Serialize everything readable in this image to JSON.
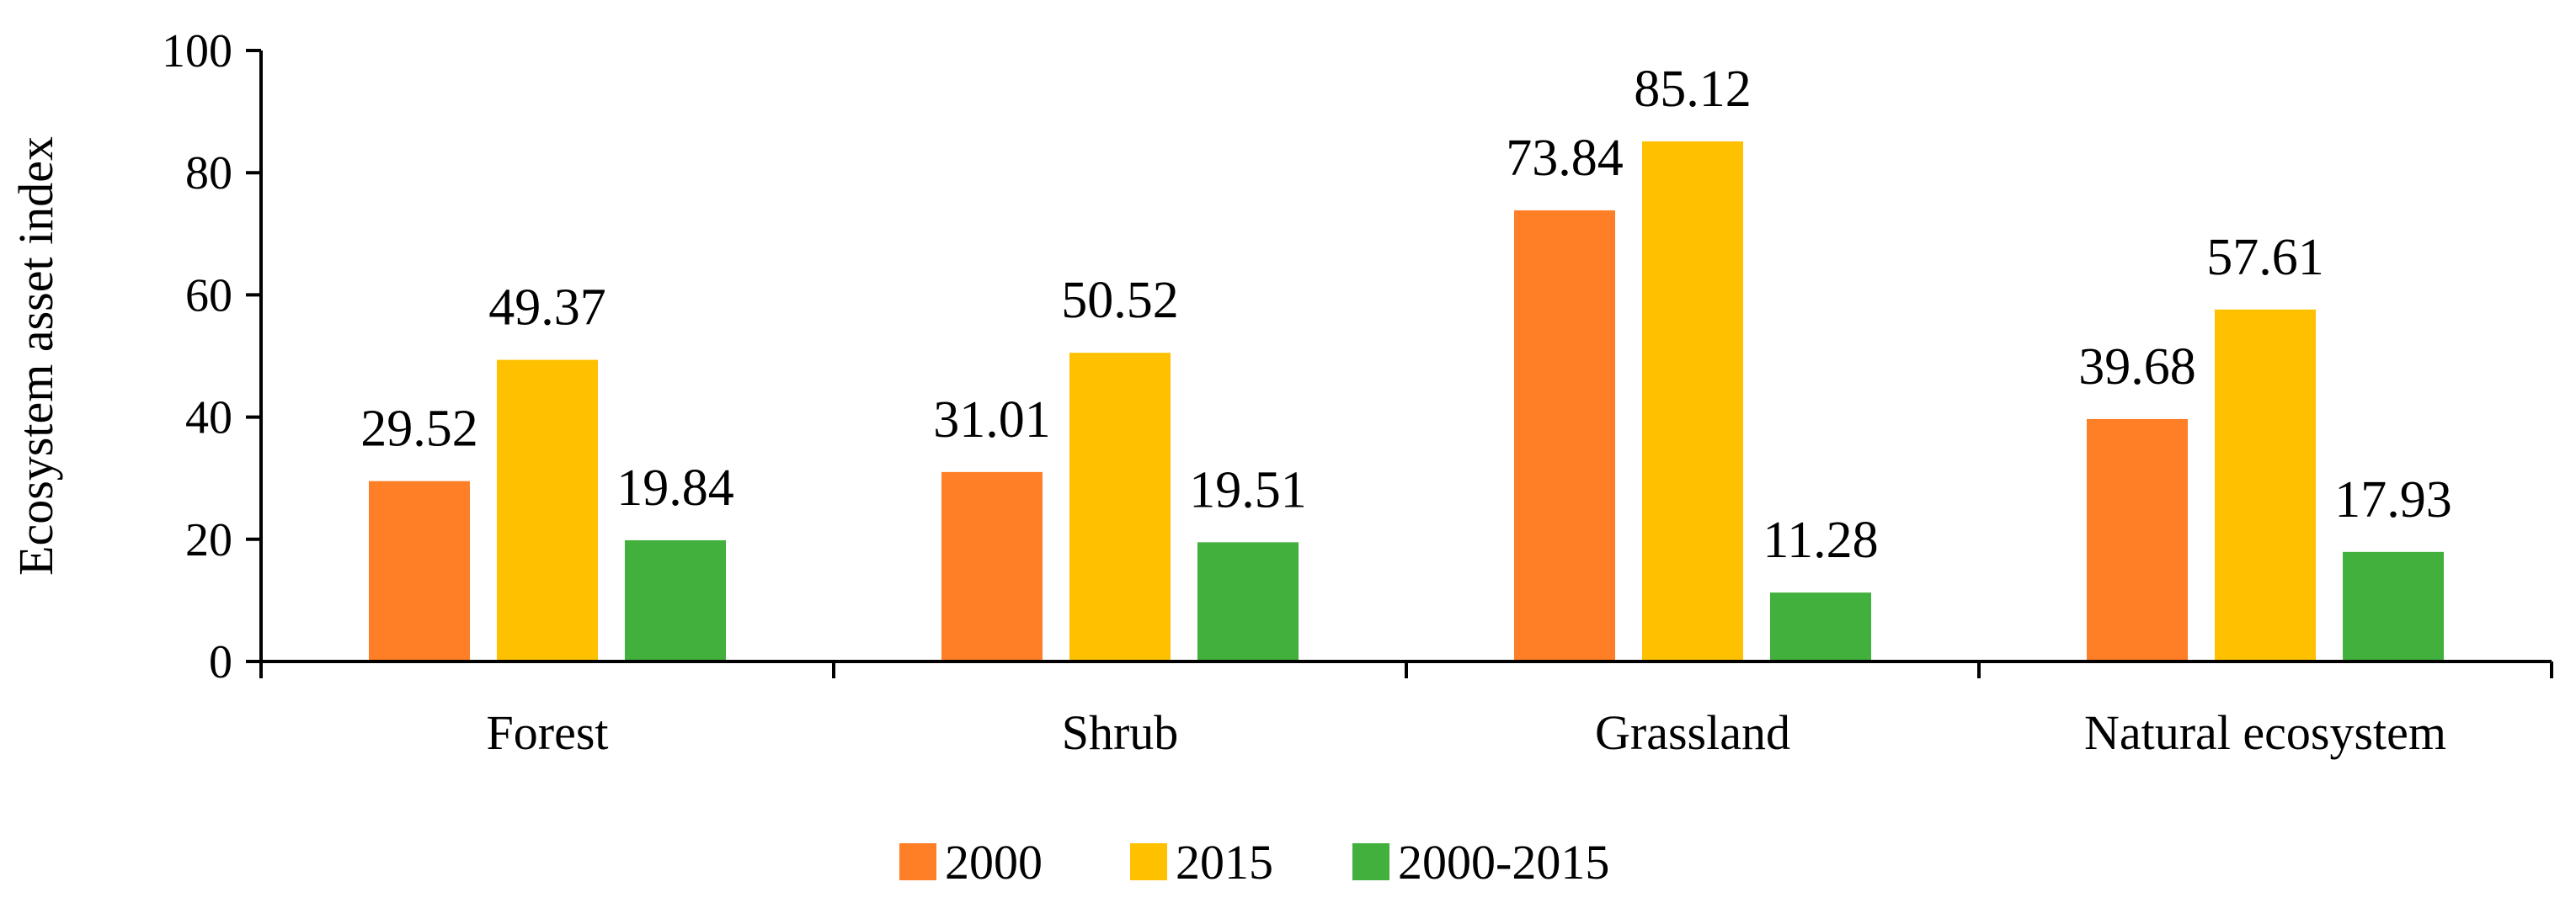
{
  "chart_data": {
    "type": "bar",
    "title": "",
    "xlabel": "",
    "ylabel": "Ecosystem asset index",
    "ylim": [
      0,
      100
    ],
    "yticks": [
      0,
      20,
      40,
      60,
      80,
      100
    ],
    "grid": false,
    "legend_position": "bottom",
    "categories": [
      "Forest",
      "Shrub",
      "Grassland",
      "Natural ecosystem"
    ],
    "series": [
      {
        "name": "2000",
        "color": "#FF7F27",
        "values": [
          29.52,
          31.01,
          73.84,
          39.68
        ],
        "labels": [
          "29.52",
          "31.01",
          "73.84",
          "39.68"
        ]
      },
      {
        "name": "2015",
        "color": "#FFC000",
        "values": [
          49.37,
          50.52,
          85.12,
          57.61
        ],
        "labels": [
          "49.37",
          "50.52",
          "85.12",
          "57.61"
        ]
      },
      {
        "name": "2000-2015",
        "color": "#41B03C",
        "values": [
          19.84,
          19.51,
          11.28,
          17.93
        ],
        "labels": [
          "19.84",
          "19.51",
          "11.28",
          "17.93"
        ]
      }
    ]
  }
}
